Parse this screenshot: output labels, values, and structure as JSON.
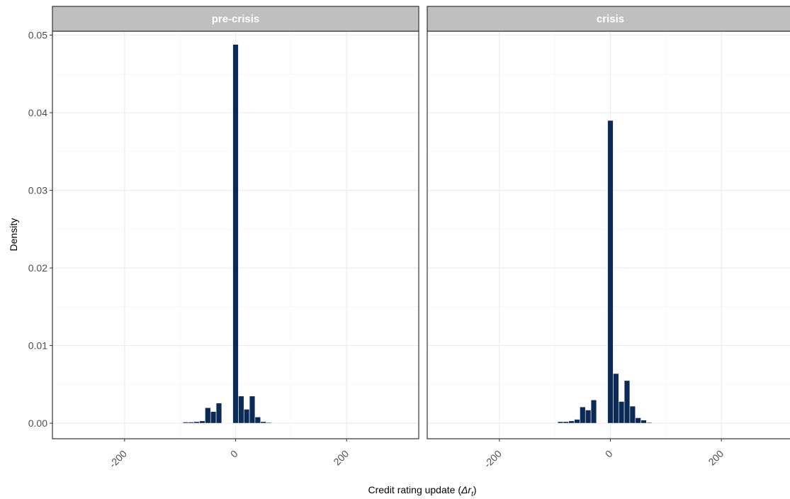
{
  "chart_data": {
    "type": "bar",
    "facet_layout": "1x2",
    "ylabel": "Density",
    "xlabel_prefix": "Credit rating update (",
    "xlabel_math": "Δr",
    "xlabel_sub": "t",
    "xlabel_suffix": ")",
    "xlim": [
      -330,
      330
    ],
    "ylim": [
      -0.002,
      0.0505
    ],
    "x_ticks": [
      -200,
      0,
      200
    ],
    "x_tick_labels": [
      "-200",
      "0",
      "200"
    ],
    "y_ticks": [
      0,
      0.01,
      0.02,
      0.03,
      0.04,
      0.05
    ],
    "y_tick_labels": [
      "0.00",
      "0.01",
      "0.02",
      "0.03",
      "0.04",
      "0.05"
    ],
    "grid": true,
    "bar_color": "#0b2a55",
    "strip_color": "#bfbfbf",
    "panels": [
      {
        "label": "pre-crisis",
        "bin_centers": [
          -90,
          -80,
          -70,
          -60,
          -50,
          -40,
          -30,
          -20,
          -10,
          0,
          10,
          20,
          30,
          40,
          50,
          60,
          70,
          80,
          90,
          100
        ],
        "values": [
          0.00015,
          0.00015,
          0.0002,
          0.0003,
          0.002,
          0.0015,
          0.0026,
          0.0,
          0.0,
          0.0488,
          0.0035,
          0.0018,
          0.0035,
          0.0008,
          0.0002,
          0.0001,
          0.0,
          0.0,
          0.0,
          0.0
        ]
      },
      {
        "label": "crisis",
        "bin_centers": [
          -90,
          -80,
          -70,
          -60,
          -50,
          -40,
          -30,
          -20,
          -10,
          0,
          10,
          20,
          30,
          40,
          50,
          60,
          70,
          80,
          90,
          100
        ],
        "values": [
          0.0002,
          0.0002,
          0.0003,
          0.0005,
          0.0021,
          0.0017,
          0.003,
          0.0,
          0.0,
          0.039,
          0.0064,
          0.0028,
          0.0055,
          0.0022,
          0.0007,
          0.0004,
          0.0001,
          0.0,
          0.0,
          0.0
        ]
      }
    ]
  }
}
